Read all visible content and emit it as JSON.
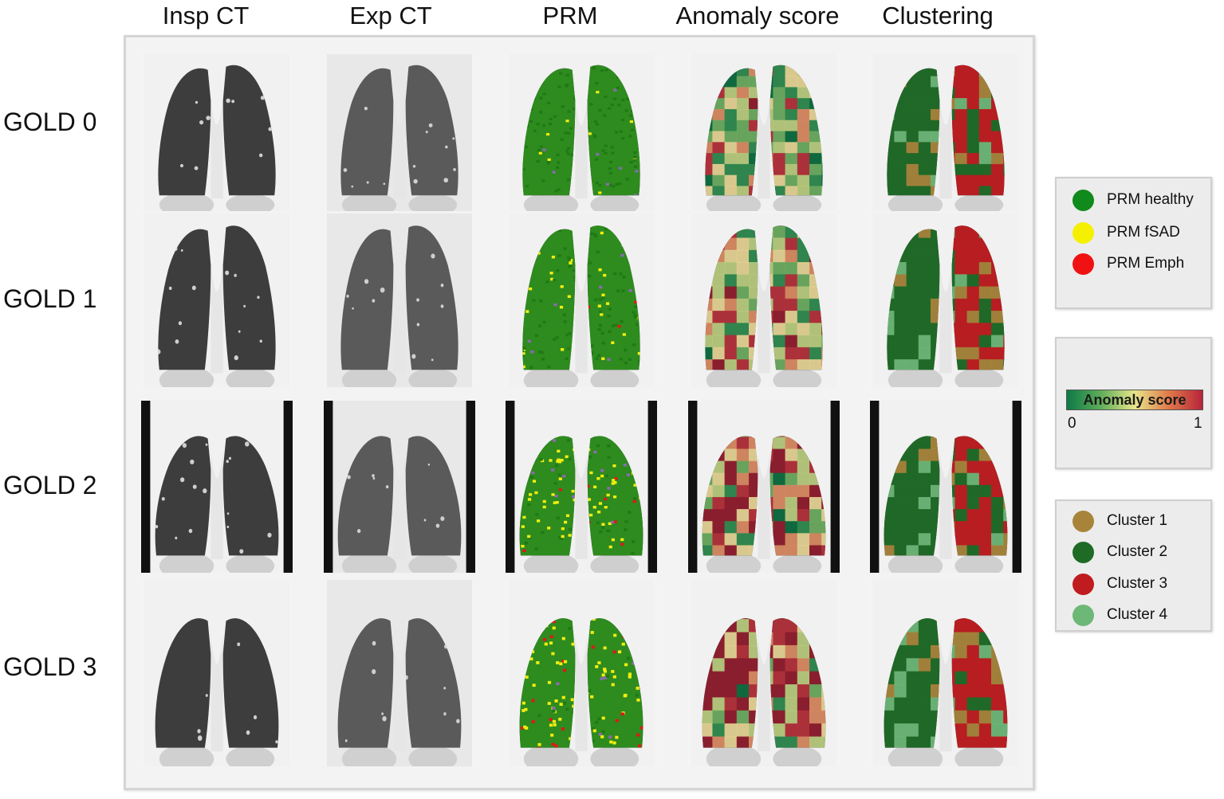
{
  "columns": [
    "Insp CT",
    "Exp CT",
    "PRM",
    "Anomaly score",
    "Clustering"
  ],
  "rows": [
    "GOLD 0",
    "GOLD 1",
    "GOLD 2",
    "GOLD 3"
  ],
  "legend_prm": [
    {
      "label": "PRM healthy",
      "color": "#118a1c"
    },
    {
      "label": "PRM fSAD",
      "color": "#f4f000"
    },
    {
      "label": "PRM Emph",
      "color": "#f01212"
    }
  ],
  "colorbar": {
    "title": "Anomaly score",
    "min": "0",
    "max": "1"
  },
  "legend_cluster": [
    {
      "label": "Cluster 1",
      "color": "#a8843a"
    },
    {
      "label": "Cluster 2",
      "color": "#1d6b25"
    },
    {
      "label": "Cluster 3",
      "color": "#c01b1f"
    },
    {
      "label": "Cluster 4",
      "color": "#6db877"
    }
  ]
}
